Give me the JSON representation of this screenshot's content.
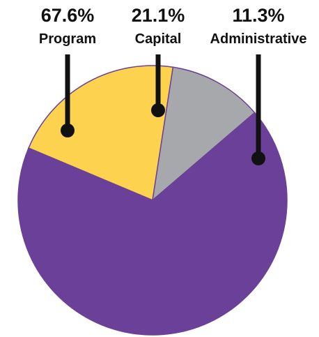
{
  "chart_data": {
    "type": "pie",
    "title": "",
    "slices": [
      {
        "label": "Program",
        "percent_label": "67.6%",
        "value": 67.6,
        "color": "#6A4098"
      },
      {
        "label": "Capital",
        "percent_label": "21.1%",
        "value": 21.1,
        "color": "#FDD24F"
      },
      {
        "label": "Administrative",
        "percent_label": "11.3%",
        "value": 11.3,
        "color": "#A7A8AB"
      }
    ],
    "edge_color": "#6A4098",
    "leader_color": "#111111"
  }
}
